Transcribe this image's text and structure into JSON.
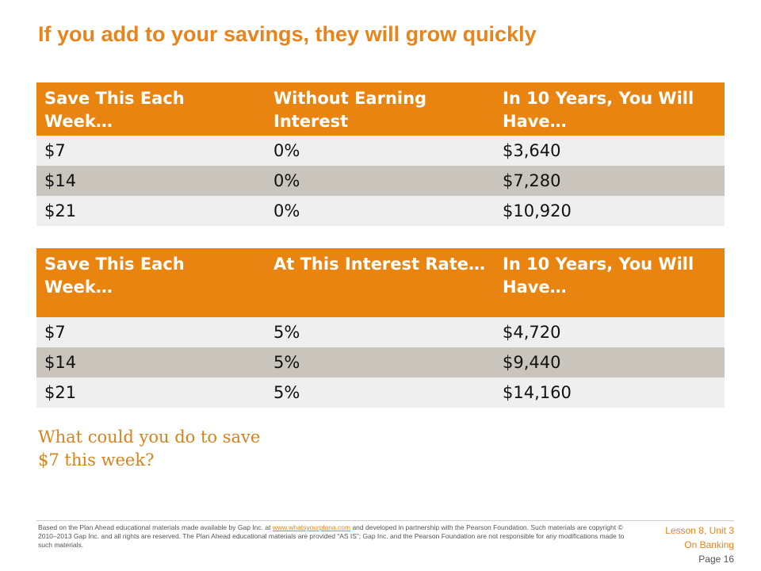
{
  "title": "If you add to your savings, they will grow quickly",
  "table1": {
    "headers": [
      "Save This Each Week…",
      "Without Earning Interest",
      "In 10 Years, You Will Have…"
    ],
    "rows": [
      [
        "$7",
        "0%",
        "$3,640"
      ],
      [
        "$14",
        "0%",
        "$7,280"
      ],
      [
        "$21",
        "0%",
        "$10,920"
      ]
    ]
  },
  "table2": {
    "headers": [
      "Save This Each Week…",
      "At This Interest Rate…",
      "In 10 Years, You Will Have…"
    ],
    "rows": [
      [
        "$7",
        "5%",
        "$4,720"
      ],
      [
        "$14",
        "5%",
        "$9,440"
      ],
      [
        "$21",
        "5%",
        "$14,160"
      ]
    ]
  },
  "question": {
    "line1": "What could you do to save",
    "line2": "$7 this week?"
  },
  "footer": {
    "text_before_link": "Based on the Plan Ahead educational materials made available by Gap Inc. at ",
    "link": "www.whatsyourplana.com",
    "text_after_link": " and developed in partnership with the Pearson Foundation.  Such materials are copyright © 2010–2013 Gap Inc. and all rights are reserved. The Plan Ahead educational materials are provided “AS IS”; Gap Inc. and the Pearson Foundation are not responsible for any modifications made to such materials.",
    "lesson": "Lesson 8, Unit 3",
    "unit_name": "On Banking",
    "page": "Page 16"
  },
  "colors": {
    "accent": "#e8841a",
    "header_bg": "#e8840f",
    "row_light": "#efefef",
    "row_dark": "#c9c5bc"
  }
}
